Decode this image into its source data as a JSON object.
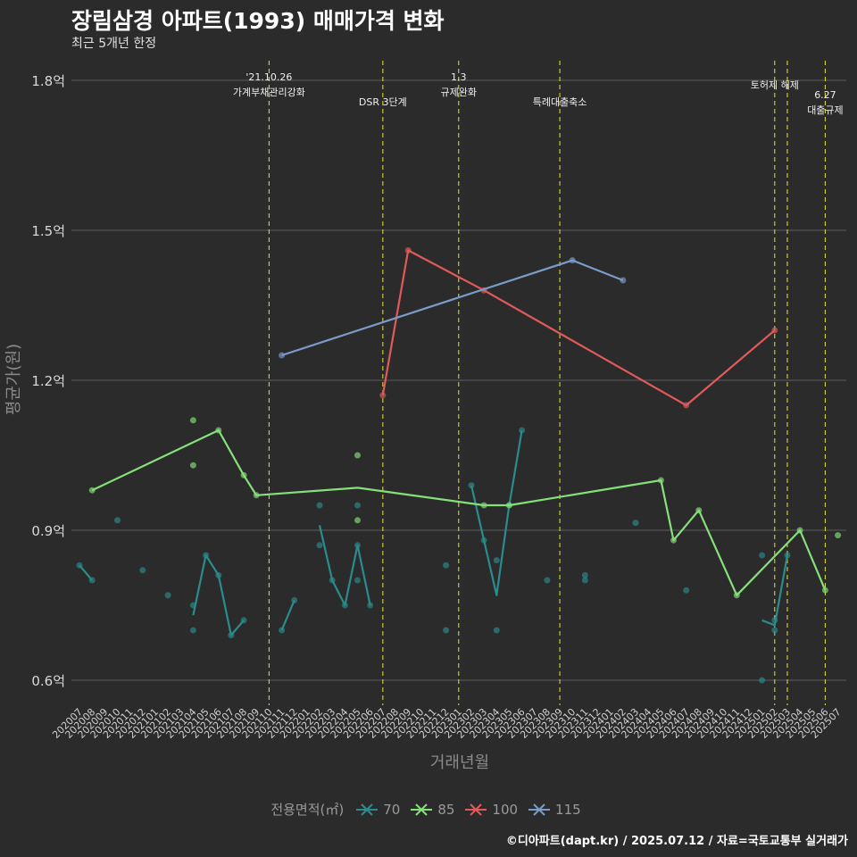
{
  "title": "장림삼경 아파트(1993) 매매가격 변화",
  "subtitle": "최근 5개년 한정",
  "caption": "©디아파트(dapt.kr) / 2025.07.12 / 자료=국토교통부 실거래가",
  "legend": {
    "title": "전용면적(㎡)",
    "items": [
      {
        "label": "70",
        "color": "#2a8c8c"
      },
      {
        "label": "85",
        "color": "#86e07a"
      },
      {
        "label": "100",
        "color": "#e05a5a"
      },
      {
        "label": "115",
        "color": "#7a9cc8"
      }
    ]
  },
  "chart_data": {
    "type": "line",
    "xlabel": "거래년월",
    "ylabel": "평균가(원)",
    "ylim": [
      0.55,
      1.85
    ],
    "yticks": [
      {
        "value": 0.6,
        "label": "0.6억"
      },
      {
        "value": 0.9,
        "label": "0.9억"
      },
      {
        "value": 1.2,
        "label": "1.2억"
      },
      {
        "value": 1.5,
        "label": "1.5억"
      },
      {
        "value": 1.8,
        "label": "1.8억"
      }
    ],
    "grid": true,
    "legend_position": "bottom",
    "categories": [
      "202007",
      "202008",
      "202009",
      "202010",
      "202011",
      "202012",
      "202101",
      "202102",
      "202103",
      "202104",
      "202105",
      "202106",
      "202107",
      "202108",
      "202109",
      "202110",
      "202111",
      "202112",
      "202201",
      "202202",
      "202203",
      "202204",
      "202205",
      "202206",
      "202207",
      "202208",
      "202209",
      "202210",
      "202211",
      "202212",
      "202301",
      "202302",
      "202303",
      "202304",
      "202305",
      "202306",
      "202307",
      "202308",
      "202309",
      "202310",
      "202311",
      "202312",
      "202401",
      "202402",
      "202403",
      "202404",
      "202405",
      "202406",
      "202407",
      "202408",
      "202409",
      "202410",
      "202411",
      "202412",
      "202501",
      "202502",
      "202503",
      "202504",
      "202505",
      "202506",
      "202507"
    ],
    "series": [
      {
        "name": "70",
        "color": "#2a8c8c",
        "line": [
          [
            "202007",
            0.83
          ],
          [
            "202008",
            0.8
          ],
          null,
          [
            "202104",
            0.73
          ],
          [
            "202105",
            0.85
          ],
          [
            "202106",
            0.81
          ],
          [
            "202107",
            0.69
          ],
          [
            "202108",
            0.72
          ],
          null,
          [
            "202111",
            0.7
          ],
          [
            "202112",
            0.76
          ],
          null,
          [
            "202202",
            0.91
          ],
          [
            "202203",
            0.8
          ],
          [
            "202204",
            0.75
          ],
          [
            "202205",
            0.87
          ],
          [
            "202206",
            0.75
          ],
          null,
          [
            "202302",
            0.99
          ],
          [
            "202303",
            0.88
          ],
          [
            "202304",
            0.77
          ],
          [
            "202305",
            0.95
          ],
          [
            "202306",
            1.1
          ],
          null,
          [
            "202501",
            0.72
          ],
          [
            "202502",
            0.71
          ],
          [
            "202503",
            0.85
          ]
        ],
        "points": [
          [
            "202007",
            0.83
          ],
          [
            "202008",
            0.8
          ],
          [
            "202010",
            0.92
          ],
          [
            "202012",
            0.82
          ],
          [
            "202102",
            0.77
          ],
          [
            "202104",
            0.75
          ],
          [
            "202104",
            0.7
          ],
          [
            "202105",
            0.85
          ],
          [
            "202106",
            0.81
          ],
          [
            "202107",
            0.69
          ],
          [
            "202108",
            0.72
          ],
          [
            "202111",
            0.7
          ],
          [
            "202112",
            0.76
          ],
          [
            "202202",
            0.95
          ],
          [
            "202202",
            0.87
          ],
          [
            "202203",
            0.8
          ],
          [
            "202204",
            0.75
          ],
          [
            "202205",
            0.95
          ],
          [
            "202205",
            0.87
          ],
          [
            "202205",
            0.8
          ],
          [
            "202206",
            0.75
          ],
          [
            "202212",
            0.83
          ],
          [
            "202212",
            0.7
          ],
          [
            "202302",
            0.99
          ],
          [
            "202303",
            0.88
          ],
          [
            "202304",
            0.84
          ],
          [
            "202304",
            0.7
          ],
          [
            "202305",
            0.95
          ],
          [
            "202306",
            1.1
          ],
          [
            "202308",
            0.8
          ],
          [
            "202311",
            0.81
          ],
          [
            "202311",
            0.8
          ],
          [
            "202403",
            0.915
          ],
          [
            "202407",
            0.78
          ],
          [
            "202501",
            0.85
          ],
          [
            "202501",
            0.6
          ],
          [
            "202502",
            0.72
          ],
          [
            "202502",
            0.7
          ],
          [
            "202503",
            0.85
          ]
        ]
      },
      {
        "name": "85",
        "color": "#86e07a",
        "line": [
          [
            "202008",
            0.98
          ],
          [
            "202106",
            1.1
          ],
          [
            "202108",
            1.01
          ],
          [
            "202109",
            0.97
          ],
          [
            "202205",
            0.985
          ],
          [
            "202303",
            0.95
          ],
          [
            "202305",
            0.95
          ],
          [
            "202405",
            1.0
          ],
          [
            "202406",
            0.88
          ],
          [
            "202408",
            0.94
          ],
          [
            "202411",
            0.77
          ],
          [
            "202504",
            0.9
          ],
          [
            "202506",
            0.78
          ]
        ],
        "points": [
          [
            "202008",
            0.98
          ],
          [
            "202104",
            1.12
          ],
          [
            "202104",
            1.03
          ],
          [
            "202106",
            1.1
          ],
          [
            "202108",
            1.01
          ],
          [
            "202109",
            0.97
          ],
          [
            "202205",
            1.05
          ],
          [
            "202205",
            0.92
          ],
          [
            "202303",
            0.95
          ],
          [
            "202305",
            0.95
          ],
          [
            "202405",
            1.0
          ],
          [
            "202406",
            0.88
          ],
          [
            "202408",
            0.94
          ],
          [
            "202411",
            0.77
          ],
          [
            "202504",
            0.9
          ],
          [
            "202506",
            0.78
          ],
          [
            "202507",
            0.89
          ]
        ]
      },
      {
        "name": "100",
        "color": "#e05a5a",
        "line": [
          [
            "202207",
            1.17
          ],
          [
            "202209",
            1.46
          ],
          [
            "202303",
            1.38
          ],
          [
            "202407",
            1.15
          ],
          [
            "202502",
            1.3
          ]
        ],
        "points": [
          [
            "202207",
            1.17
          ],
          [
            "202209",
            1.46
          ],
          [
            "202303",
            1.38
          ],
          [
            "202407",
            1.15
          ],
          [
            "202502",
            1.3
          ]
        ]
      },
      {
        "name": "115",
        "color": "#7a9cc8",
        "line": [
          [
            "202111",
            1.25
          ],
          [
            "202310",
            1.44
          ],
          [
            "202402",
            1.4
          ]
        ],
        "points": [
          [
            "202111",
            1.25
          ],
          [
            "202310",
            1.44
          ],
          [
            "202402",
            1.4
          ]
        ]
      }
    ],
    "annotations": [
      {
        "x": "202110",
        "lines": [
          "'21.10.26",
          "가계부채관리강화"
        ],
        "level": 0
      },
      {
        "x": "202207",
        "lines": [
          "DSR 3단계"
        ],
        "level": 2
      },
      {
        "x": "202301",
        "lines": [
          "1.3",
          "규제완화"
        ],
        "level": 0
      },
      {
        "x": "202309",
        "lines": [
          "특례대출축소"
        ],
        "level": 2
      },
      {
        "x": "202502",
        "lines": [
          "토허제 해제"
        ],
        "level": 1
      },
      {
        "x": "202503",
        "lines": [],
        "level": 1
      },
      {
        "x": "202506",
        "lines": [
          "6.27",
          "대출규제"
        ],
        "level": 3
      }
    ]
  }
}
